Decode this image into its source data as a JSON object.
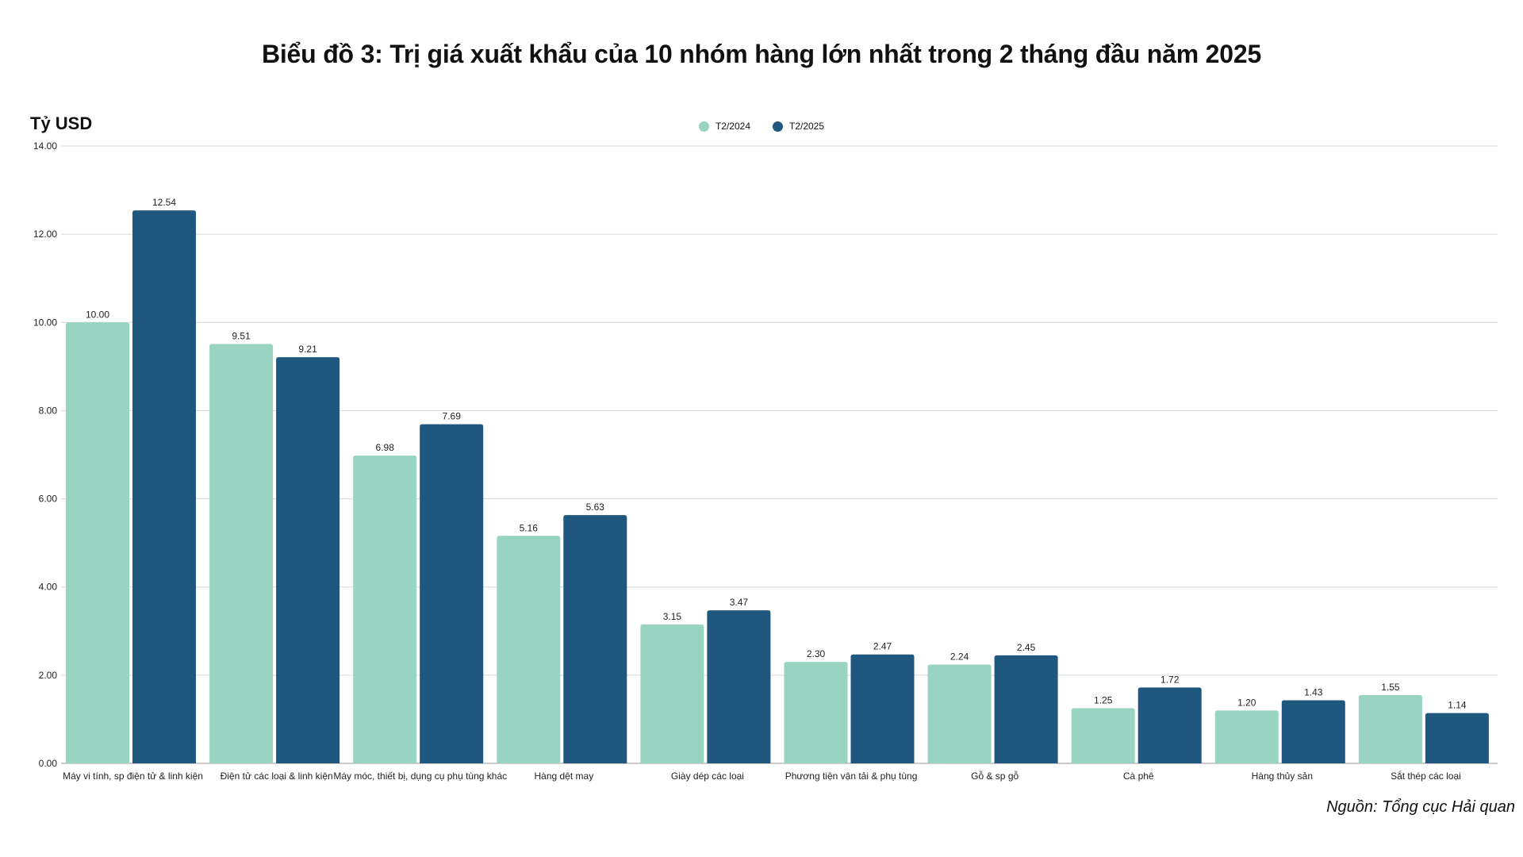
{
  "chart_data": {
    "type": "bar",
    "title": "Biểu đồ 3: Trị giá xuất khẩu của 10 nhóm hàng lớn nhất trong 2 tháng đầu năm 2025",
    "ylabel": "Tỷ USD",
    "xlabel": "",
    "ylim": [
      0,
      14
    ],
    "yticks": [
      "0.00",
      "2.00",
      "4.00",
      "6.00",
      "8.00",
      "10.00",
      "12.00",
      "14.00"
    ],
    "grid": true,
    "legend_position": "top-center",
    "categories": [
      "Máy vi tính, sp điện tử & linh kiện",
      "Điện tử các loại & linh kiện",
      "Máy móc, thiết bị, dụng cụ phụ tùng khác",
      "Hàng dệt may",
      "Giày dép các loại",
      "Phương tiện vận tải & phụ tùng",
      "Gỗ & sp gỗ",
      "Cà phê",
      "Hàng thủy sản",
      "Sắt thép các loại"
    ],
    "series": [
      {
        "name": "T2/2024",
        "color": "#99d3c2",
        "values": [
          10.0,
          9.51,
          6.98,
          5.16,
          3.15,
          2.3,
          2.24,
          1.25,
          1.2,
          1.55
        ],
        "labels": [
          "10.00",
          "9.51",
          "6.98",
          "5.16",
          "3.15",
          "2.30",
          "2.24",
          "1.25",
          "1.20",
          "1.55"
        ]
      },
      {
        "name": "T2/2025",
        "color": "#20577f",
        "values": [
          12.54,
          9.21,
          7.69,
          5.63,
          3.47,
          2.47,
          2.45,
          1.72,
          1.43,
          1.14
        ],
        "labels": [
          "12.54",
          "9.21",
          "7.69",
          "5.63",
          "3.47",
          "2.47",
          "2.45",
          "1.72",
          "1.43",
          "1.14"
        ]
      }
    ],
    "source": "Nguồn: Tổng cục Hải quan"
  }
}
